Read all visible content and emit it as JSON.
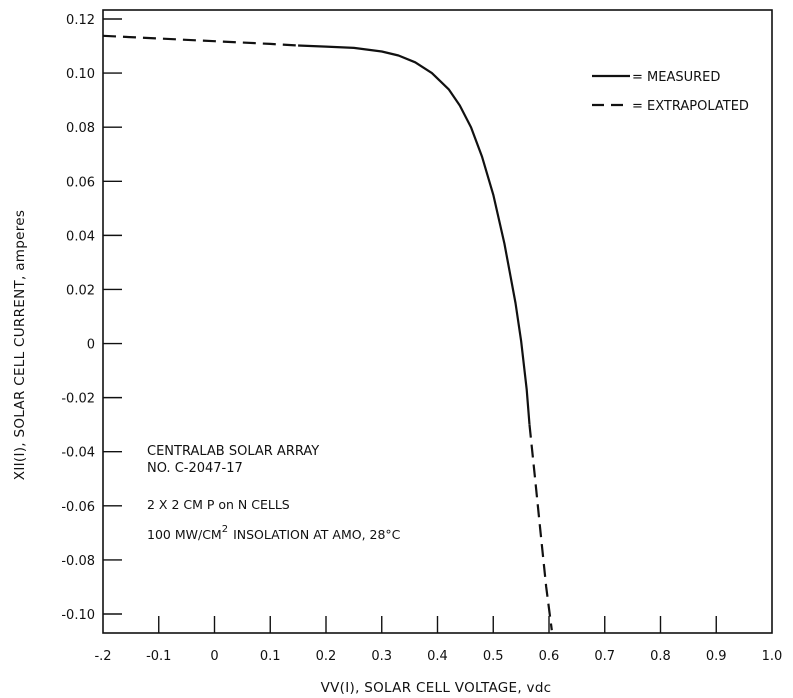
{
  "chart_data": {
    "type": "line",
    "title": "",
    "xlabel": "VV(I), SOLAR CELL VOLTAGE, vdc",
    "ylabel": "XII(I), SOLAR CELL CURRENT, amperes",
    "xlim": [
      -0.2,
      1.0
    ],
    "ylim": [
      -0.11,
      0.12
    ],
    "x_ticks": [
      -0.2,
      -0.1,
      0,
      0.1,
      0.2,
      0.3,
      0.4,
      0.5,
      0.6,
      0.7,
      0.8,
      0.9,
      1.0
    ],
    "x_tick_labels": [
      "-.2",
      "-0.1",
      "0",
      "0.1",
      "0.2",
      "0.3",
      "0.4",
      "0.5",
      "0.6",
      "0.7",
      "0.8",
      "0.9",
      "1.0"
    ],
    "y_ticks": [
      0.12,
      0.1,
      0.08,
      0.06,
      0.04,
      0.02,
      0,
      -0.02,
      -0.04,
      -0.06,
      -0.08,
      -0.1
    ],
    "y_tick_labels": [
      "0.12",
      "0.10",
      "0.08",
      "0.06",
      "0.04",
      "0.02",
      "0",
      "-0.02",
      "-0.04",
      "-0.06",
      "-0.08",
      "-0.10"
    ],
    "grid": false,
    "legend_position": "top-right",
    "legend": [
      {
        "label": "= MEASURED",
        "style": "solid"
      },
      {
        "label": "= EXTRAPOLATED",
        "style": "dashed"
      }
    ],
    "series": [
      {
        "style": "dashed",
        "x": [
          -0.2,
          -0.1,
          0.0,
          0.1,
          0.15
        ],
        "y": [
          0.1138,
          0.1128,
          0.1118,
          0.1108,
          0.1102
        ]
      },
      {
        "style": "solid",
        "x": [
          0.15,
          0.2,
          0.25,
          0.3,
          0.33,
          0.36,
          0.39,
          0.42,
          0.44,
          0.46,
          0.48,
          0.5,
          0.52,
          0.54,
          0.55,
          0.56,
          0.565
        ],
        "y": [
          0.1102,
          0.1098,
          0.1093,
          0.108,
          0.1065,
          0.104,
          0.1,
          0.094,
          0.088,
          0.08,
          0.069,
          0.055,
          0.037,
          0.015,
          0.001,
          -0.017,
          -0.03
        ]
      },
      {
        "style": "dashed",
        "x": [
          0.565,
          0.575,
          0.585,
          0.595,
          0.605
        ],
        "y": [
          -0.03,
          -0.05,
          -0.07,
          -0.09,
          -0.106
        ]
      }
    ],
    "annotations": [
      "CENTRALAB SOLAR ARRAY",
      "NO. C-2047-17",
      "2 X 2 CM P on N CELLS",
      "100 MW/CM",
      "2",
      "INSOLATION AT AMO, 28°C"
    ],
    "line_color": "#111111",
    "background": "#ffffff"
  }
}
